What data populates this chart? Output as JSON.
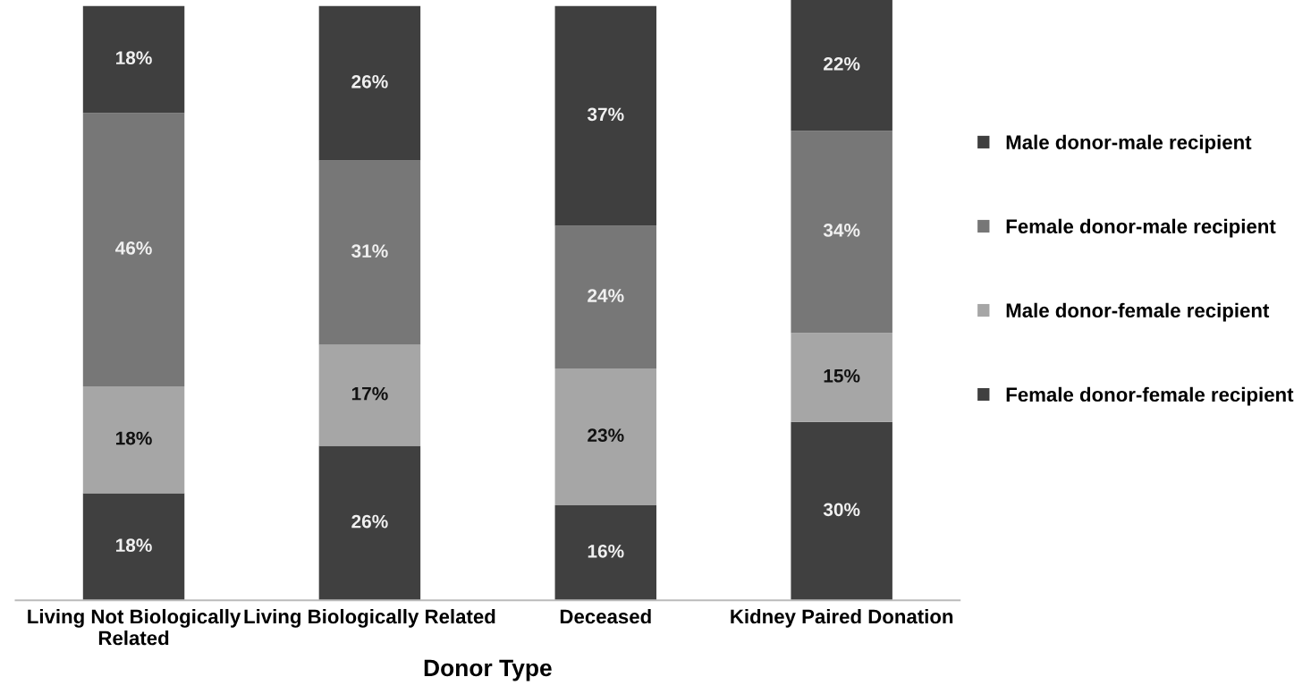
{
  "chart_data": {
    "type": "bar",
    "stacked": true,
    "xlabel": "Donor Type",
    "legend": "right",
    "grid": false,
    "tick_labels": "x",
    "categories": [
      "Living Not Biologically Related",
      "Living Biologically Related",
      "Deceased",
      "Kidney Paired Donation"
    ],
    "series": [
      {
        "name": "Female donor-female recipient",
        "color": "#404040",
        "values": [
          18,
          26,
          16,
          30
        ],
        "value_labels": [
          "18%",
          "26%",
          "16%",
          "30%"
        ]
      },
      {
        "name": "Male donor-female recipient",
        "color": "#a6a6a6",
        "values": [
          18,
          17,
          23,
          15
        ],
        "value_labels": [
          "18%",
          "17%",
          "23%",
          "15%"
        ]
      },
      {
        "name": "Female donor-male recipient",
        "color": "#777777",
        "values": [
          46,
          31,
          24,
          34
        ],
        "value_labels": [
          "46%",
          "31%",
          "24%",
          "34%"
        ]
      },
      {
        "name": "Male donor-male recipient",
        "color": "#3f3f3f",
        "values": [
          18,
          26,
          37,
          22
        ],
        "value_labels": [
          "18%",
          "26%",
          "37%",
          "22%"
        ]
      }
    ]
  }
}
